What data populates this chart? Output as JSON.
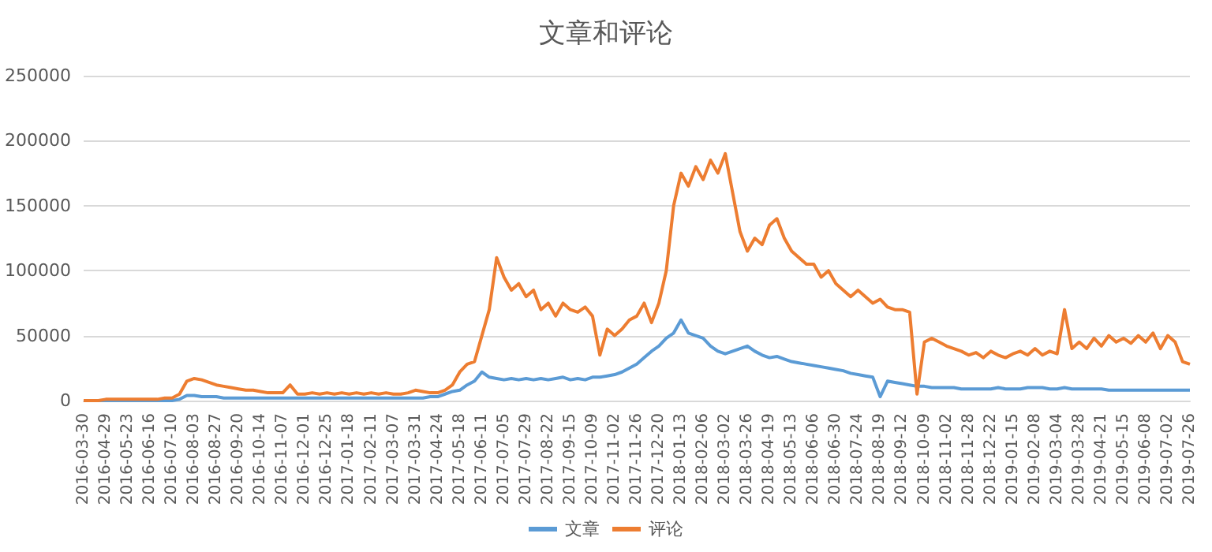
{
  "chart_data": {
    "type": "line",
    "title": "文章和评论",
    "categories": [
      "2016-03-30",
      null,
      null,
      "2016-04-29",
      null,
      null,
      "2016-05-23",
      null,
      null,
      "2016-06-16",
      null,
      null,
      "2016-07-10",
      null,
      null,
      "2016-08-03",
      null,
      null,
      "2016-08-27",
      null,
      null,
      "2016-09-20",
      null,
      null,
      "2016-10-14",
      null,
      null,
      "2016-11-07",
      null,
      null,
      "2016-12-01",
      null,
      null,
      "2016-12-25",
      null,
      null,
      "2017-01-18",
      null,
      null,
      "2017-02-11",
      null,
      null,
      "2017-03-07",
      null,
      null,
      "2017-03-31",
      null,
      null,
      "2017-04-24",
      null,
      null,
      "2017-05-18",
      null,
      null,
      "2017-06-11",
      null,
      null,
      "2017-07-05",
      null,
      null,
      "2017-07-29",
      null,
      null,
      "2017-08-22",
      null,
      null,
      "2017-09-15",
      null,
      null,
      "2017-10-09",
      null,
      null,
      "2017-11-02",
      null,
      null,
      "2017-11-26",
      null,
      null,
      "2017-12-20",
      null,
      null,
      "2018-01-13",
      null,
      null,
      "2018-02-06",
      null,
      null,
      "2018-03-02",
      null,
      null,
      "2018-03-26",
      null,
      null,
      "2018-04-19",
      null,
      null,
      "2018-05-13",
      null,
      null,
      "2018-06-06",
      null,
      null,
      "2018-06-30",
      null,
      null,
      "2018-07-24",
      null,
      null,
      "2018-08-19",
      null,
      null,
      "2018-09-12",
      null,
      null,
      "2018-10-09",
      null,
      null,
      "2018-11-02",
      null,
      null,
      "2018-11-28",
      null,
      null,
      "2018-12-22",
      null,
      null,
      "2019-01-15",
      null,
      null,
      "2019-02-08",
      null,
      null,
      "2019-03-04",
      null,
      null,
      "2019-03-28",
      null,
      null,
      "2019-04-21",
      null,
      null,
      "2019-05-15",
      null,
      null,
      "2019-06-08",
      null,
      null,
      "2019-07-02",
      null,
      null,
      "2019-07-26"
    ],
    "series": [
      {
        "name": "文章",
        "color": "#5b9bd5",
        "values": [
          0,
          0,
          0,
          0,
          0,
          0,
          0,
          0,
          0,
          0,
          0,
          0,
          0,
          1000,
          4000,
          4000,
          3000,
          3000,
          3000,
          2000,
          2000,
          2000,
          2000,
          2000,
          2000,
          2000,
          2000,
          2000,
          2000,
          2000,
          2000,
          2000,
          2000,
          2000,
          2000,
          2000,
          2000,
          2000,
          2000,
          2000,
          2000,
          2000,
          2000,
          2000,
          2000,
          2000,
          2000,
          3000,
          3000,
          5000,
          7000,
          8000,
          12000,
          15000,
          22000,
          18000,
          17000,
          16000,
          17000,
          16000,
          17000,
          16000,
          17000,
          16000,
          17000,
          18000,
          16000,
          17000,
          16000,
          18000,
          18000,
          19000,
          20000,
          22000,
          25000,
          28000,
          33000,
          38000,
          42000,
          48000,
          52000,
          62000,
          52000,
          50000,
          48000,
          42000,
          38000,
          36000,
          38000,
          40000,
          42000,
          38000,
          35000,
          33000,
          34000,
          32000,
          30000,
          29000,
          28000,
          27000,
          26000,
          25000,
          24000,
          23000,
          21000,
          20000,
          19000,
          18000,
          3000,
          15000,
          14000,
          13000,
          12000,
          11000,
          11000,
          10000,
          10000,
          10000,
          10000,
          9000,
          9000,
          9000,
          9000,
          9000,
          10000,
          9000,
          9000,
          9000,
          10000,
          10000,
          10000,
          9000,
          9000,
          10000,
          9000,
          9000,
          9000,
          9000,
          9000,
          8000,
          8000,
          8000,
          8000,
          8000,
          8000,
          8000,
          8000,
          8000,
          8000,
          8000,
          8000
        ]
      },
      {
        "name": "评论",
        "color": "#ed7d31",
        "values": [
          0,
          0,
          0,
          1000,
          1000,
          1000,
          1000,
          1000,
          1000,
          1000,
          1000,
          2000,
          2000,
          5000,
          15000,
          17000,
          16000,
          14000,
          12000,
          11000,
          10000,
          9000,
          8000,
          8000,
          7000,
          6000,
          6000,
          6000,
          12000,
          5000,
          5000,
          6000,
          5000,
          6000,
          5000,
          6000,
          5000,
          6000,
          5000,
          6000,
          5000,
          6000,
          5000,
          5000,
          6000,
          8000,
          7000,
          6000,
          6000,
          8000,
          12000,
          22000,
          28000,
          30000,
          50000,
          70000,
          110000,
          95000,
          85000,
          90000,
          80000,
          85000,
          70000,
          75000,
          65000,
          75000,
          70000,
          68000,
          72000,
          65000,
          35000,
          55000,
          50000,
          55000,
          62000,
          65000,
          75000,
          60000,
          75000,
          100000,
          150000,
          175000,
          165000,
          180000,
          170000,
          185000,
          175000,
          190000,
          160000,
          130000,
          115000,
          125000,
          120000,
          135000,
          140000,
          125000,
          115000,
          110000,
          105000,
          105000,
          95000,
          100000,
          90000,
          85000,
          80000,
          85000,
          80000,
          75000,
          78000,
          72000,
          70000,
          70000,
          68000,
          5000,
          45000,
          48000,
          45000,
          42000,
          40000,
          38000,
          35000,
          37000,
          33000,
          38000,
          35000,
          33000,
          36000,
          38000,
          35000,
          40000,
          35000,
          38000,
          36000,
          70000,
          40000,
          45000,
          40000,
          48000,
          42000,
          50000,
          45000,
          48000,
          44000,
          50000,
          45000,
          52000,
          40000,
          50000,
          45000,
          30000,
          28000
        ]
      }
    ],
    "ylim": [
      0,
      250000
    ],
    "yticks": [
      0,
      50000,
      100000,
      150000,
      200000,
      250000
    ],
    "grid": "y",
    "legend": "bottom",
    "marker": "none",
    "line_style": "solid"
  }
}
